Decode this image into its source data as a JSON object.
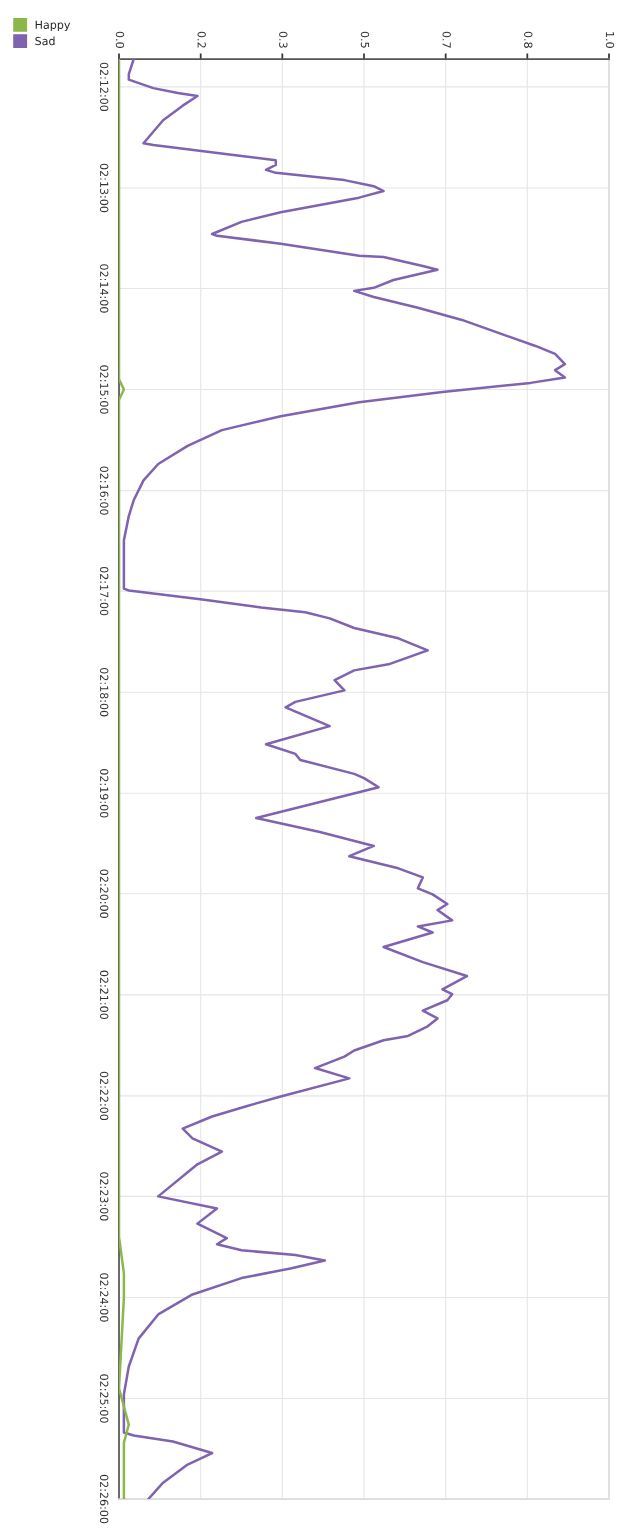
{
  "chart_data": {
    "type": "line",
    "orientation": "horizontal",
    "legend": "top left",
    "grid": true,
    "marker": "none",
    "line_style": "solid",
    "xlim": [
      0,
      1
    ],
    "xticks": [
      {
        "value": 0,
        "label": "0.0"
      },
      {
        "value": 0.1667,
        "label": "0.2"
      },
      {
        "value": 0.3333,
        "label": "0.3"
      },
      {
        "value": 0.5,
        "label": "0.5"
      },
      {
        "value": 0.6667,
        "label": "0.7"
      },
      {
        "value": 0.8333,
        "label": "0.8"
      },
      {
        "value": 1,
        "label": "1.0"
      }
    ],
    "ylim": [
      2.4333,
      2.1954
    ],
    "yticks": [
      {
        "value": 2.2,
        "label": "02:12:00"
      },
      {
        "value": 2.2167,
        "label": "02:13:00"
      },
      {
        "value": 2.2333,
        "label": "02:14:00"
      },
      {
        "value": 2.25,
        "label": "02:15:00"
      },
      {
        "value": 2.2667,
        "label": "02:16:00"
      },
      {
        "value": 2.2833,
        "label": "02:17:00"
      },
      {
        "value": 2.3,
        "label": "02:18:00"
      },
      {
        "value": 2.3167,
        "label": "02:19:00"
      },
      {
        "value": 2.3333,
        "label": "02:20:00"
      },
      {
        "value": 2.35,
        "label": "02:21:00"
      },
      {
        "value": 2.3667,
        "label": "02:22:00"
      },
      {
        "value": 2.3833,
        "label": "02:23:00"
      },
      {
        "value": 2.4,
        "label": "02:24:00"
      },
      {
        "value": 2.4167,
        "label": "02:25:00"
      },
      {
        "value": 2.4333,
        "label": "02:26:00"
      }
    ],
    "series": [
      {
        "name": "Happy",
        "color": "#8cb84a",
        "x": [
          2.1954,
          2.2483,
          2.25,
          2.2517,
          2.39,
          2.396,
          2.4,
          2.415,
          2.421,
          2.424,
          2.4333
        ],
        "values": [
          0,
          0,
          0.01,
          0,
          0,
          0.01,
          0.01,
          0,
          0.02,
          0.01,
          0.01
        ]
      },
      {
        "name": "Sad",
        "color": "#7f62b0",
        "x": [
          2.1954,
          2.1979,
          2.1988,
          2.2002,
          2.201,
          2.2015,
          2.2031,
          2.2055,
          2.2093,
          2.2096,
          2.2114,
          2.2121,
          2.2129,
          2.2137,
          2.2142,
          2.2154,
          2.2164,
          2.2172,
          2.2183,
          2.2207,
          2.2223,
          2.2243,
          2.2246,
          2.2259,
          2.2279,
          2.2281,
          2.2296,
          2.2302,
          2.2319,
          2.2332,
          2.2337,
          2.2347,
          2.2365,
          2.2385,
          2.2408,
          2.2428,
          2.2441,
          2.2458,
          2.2468,
          2.248,
          2.2489,
          2.2504,
          2.2521,
          2.2544,
          2.2567,
          2.2593,
          2.2623,
          2.265,
          2.2683,
          2.2709,
          2.2749,
          2.2829,
          2.2832,
          2.2847,
          2.286,
          2.2868,
          2.2878,
          2.2894,
          2.2911,
          2.2921,
          2.2931,
          2.2954,
          2.2964,
          2.298,
          2.2997,
          2.3016,
          2.3025,
          2.3056,
          2.3086,
          2.3102,
          2.3112,
          2.3135,
          2.3142,
          2.3157,
          2.3208,
          2.3231,
          2.3254,
          2.3271,
          2.3291,
          2.3306,
          2.3324,
          2.3334,
          2.335,
          2.336,
          2.3377,
          2.3387,
          2.3397,
          2.3421,
          2.3446,
          2.3469,
          2.3491,
          2.3499,
          2.3509,
          2.3526,
          2.3539,
          2.3552,
          2.3568,
          2.3575,
          2.3592,
          2.3602,
          2.3621,
          2.3638,
          2.3668,
          2.3684,
          2.3701,
          2.3721,
          2.3737,
          2.3759,
          2.378,
          2.3833,
          2.3853,
          2.3878,
          2.3902,
          2.3912,
          2.3922,
          2.393,
          2.3939,
          2.3952,
          2.3968,
          2.3995,
          2.4028,
          2.4068,
          2.4114,
          2.416,
          2.4207,
          2.4223,
          2.4228,
          2.4238,
          2.4257,
          2.4276,
          2.4306,
          2.4333
        ],
        "values": [
          0.03,
          0.02,
          0.02,
          0.07,
          0.12,
          0.16,
          0.13,
          0.09,
          0.05,
          0.07,
          0.25,
          0.32,
          0.32,
          0.3,
          0.32,
          0.46,
          0.52,
          0.54,
          0.49,
          0.33,
          0.25,
          0.19,
          0.2,
          0.33,
          0.49,
          0.54,
          0.62,
          0.65,
          0.56,
          0.52,
          0.48,
          0.52,
          0.61,
          0.7,
          0.78,
          0.85,
          0.89,
          0.91,
          0.89,
          0.91,
          0.84,
          0.66,
          0.49,
          0.33,
          0.21,
          0.14,
          0.08,
          0.05,
          0.03,
          0.02,
          0.01,
          0.01,
          0.02,
          0.17,
          0.29,
          0.38,
          0.43,
          0.48,
          0.57,
          0.6,
          0.63,
          0.55,
          0.48,
          0.44,
          0.46,
          0.36,
          0.34,
          0.43,
          0.3,
          0.36,
          0.37,
          0.48,
          0.5,
          0.53,
          0.28,
          0.41,
          0.52,
          0.47,
          0.57,
          0.62,
          0.61,
          0.64,
          0.67,
          0.65,
          0.68,
          0.61,
          0.64,
          0.54,
          0.62,
          0.71,
          0.66,
          0.68,
          0.67,
          0.62,
          0.65,
          0.63,
          0.59,
          0.54,
          0.48,
          0.46,
          0.4,
          0.47,
          0.33,
          0.26,
          0.19,
          0.13,
          0.15,
          0.21,
          0.16,
          0.08,
          0.2,
          0.16,
          0.22,
          0.2,
          0.25,
          0.36,
          0.42,
          0.35,
          0.25,
          0.15,
          0.08,
          0.04,
          0.02,
          0.01,
          0.01,
          0.01,
          0.03,
          0.11,
          0.19,
          0.14,
          0.09,
          0.06
        ]
      }
    ]
  }
}
